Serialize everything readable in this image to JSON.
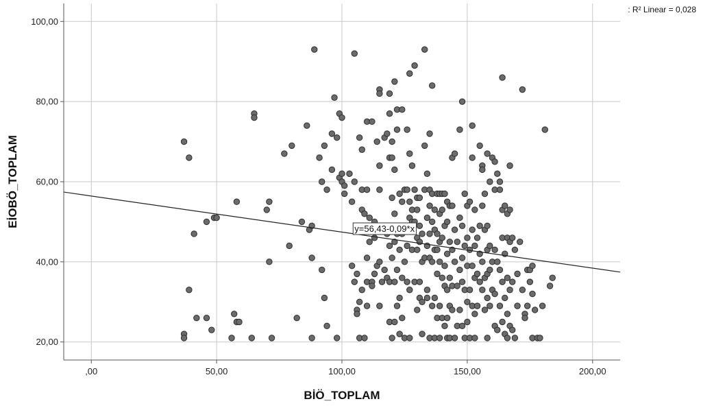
{
  "chart_data": {
    "type": "scatter",
    "xlabel": "BİÖ_TOPLAM",
    "ylabel": "EİOBÖ_TOPLAM",
    "xlim": [
      -11,
      211
    ],
    "ylim": [
      15.5,
      104.5
    ],
    "x_ticks": [
      0,
      50,
      100,
      150,
      200
    ],
    "x_tick_labels": [
      ",00",
      "50,00",
      "100,00",
      "150,00",
      "200,00"
    ],
    "y_ticks": [
      20,
      40,
      60,
      80,
      100
    ],
    "y_tick_labels": [
      "20,00",
      "40,00",
      "60,00",
      "80,00",
      "100,00"
    ],
    "grid": true,
    "fit_line": {
      "label": "y=56,43-0,09*x",
      "intercept": 56.43,
      "slope": -0.09,
      "label_x": 117,
      "label_y": 47.5
    },
    "r2_label": ": R² Linear = 0,028",
    "colors": {
      "point_fill": "#6b6b6b",
      "point_stroke": "#2d2d2d",
      "grid": "#c8c8c8",
      "axis": "#555555",
      "line": "#222222"
    },
    "points": [
      [
        37,
        70
      ],
      [
        39,
        66
      ],
      [
        37,
        22
      ],
      [
        37,
        21
      ],
      [
        39,
        33
      ],
      [
        41,
        47
      ],
      [
        42,
        26
      ],
      [
        46,
        26
      ],
      [
        46,
        50
      ],
      [
        48,
        23
      ],
      [
        49,
        51
      ],
      [
        50,
        51
      ],
      [
        56,
        21
      ],
      [
        57,
        27
      ],
      [
        58,
        25
      ],
      [
        59,
        25
      ],
      [
        58,
        55
      ],
      [
        64,
        21
      ],
      [
        65,
        77
      ],
      [
        65,
        76
      ],
      [
        70,
        53
      ],
      [
        71,
        55
      ],
      [
        71,
        40
      ],
      [
        72,
        21
      ],
      [
        77,
        67
      ],
      [
        79,
        44
      ],
      [
        80,
        69
      ],
      [
        82,
        26
      ],
      [
        84,
        50
      ],
      [
        86,
        74
      ],
      [
        87,
        48
      ],
      [
        88,
        49
      ],
      [
        88,
        41
      ],
      [
        88,
        21
      ],
      [
        89,
        93
      ],
      [
        91,
        66
      ],
      [
        92,
        38
      ],
      [
        92,
        60
      ],
      [
        93,
        69
      ],
      [
        93,
        31
      ],
      [
        94,
        58
      ],
      [
        94,
        24
      ],
      [
        96,
        63
      ],
      [
        96,
        72
      ],
      [
        97,
        81
      ],
      [
        98,
        71
      ],
      [
        98,
        21
      ],
      [
        99,
        61
      ],
      [
        99,
        77
      ],
      [
        100,
        60
      ],
      [
        100,
        76
      ],
      [
        100,
        62
      ],
      [
        101,
        59
      ],
      [
        101,
        57
      ],
      [
        103,
        62
      ],
      [
        104,
        55
      ],
      [
        104,
        39
      ],
      [
        105,
        92
      ],
      [
        105,
        60
      ],
      [
        105,
        35
      ],
      [
        106,
        37
      ],
      [
        106,
        28
      ],
      [
        106,
        27
      ],
      [
        107,
        71
      ],
      [
        107,
        30
      ],
      [
        107,
        21
      ],
      [
        108,
        53
      ],
      [
        108,
        68
      ],
      [
        108,
        58
      ],
      [
        108,
        33
      ],
      [
        109,
        52
      ],
      [
        109,
        21
      ],
      [
        110,
        75
      ],
      [
        110,
        58
      ],
      [
        110,
        41
      ],
      [
        110,
        35
      ],
      [
        110,
        29
      ],
      [
        111,
        51
      ],
      [
        111,
        48
      ],
      [
        111,
        45
      ],
      [
        112,
        75
      ],
      [
        112,
        35
      ],
      [
        112,
        34
      ],
      [
        113,
        50
      ],
      [
        113,
        46
      ],
      [
        113,
        37
      ],
      [
        114,
        70
      ],
      [
        114,
        39
      ],
      [
        115,
        83
      ],
      [
        115,
        82
      ],
      [
        115,
        64
      ],
      [
        115,
        58
      ],
      [
        115,
        40
      ],
      [
        115,
        29
      ],
      [
        116,
        35
      ],
      [
        117,
        71
      ],
      [
        117,
        48
      ],
      [
        117,
        38
      ],
      [
        118,
        72
      ],
      [
        118,
        47
      ],
      [
        118,
        36
      ],
      [
        119,
        82
      ],
      [
        119,
        77
      ],
      [
        119,
        66
      ],
      [
        119,
        44
      ],
      [
        119,
        35
      ],
      [
        119,
        25
      ],
      [
        120,
        70
      ],
      [
        120,
        66
      ],
      [
        120,
        56
      ],
      [
        120,
        41
      ],
      [
        120,
        21
      ],
      [
        121,
        85
      ],
      [
        121,
        63
      ],
      [
        121,
        52
      ],
      [
        121,
        45
      ],
      [
        121,
        35
      ],
      [
        121,
        25
      ],
      [
        122,
        78
      ],
      [
        122,
        73
      ],
      [
        122,
        47
      ],
      [
        122,
        38
      ],
      [
        122,
        29
      ],
      [
        123,
        57
      ],
      [
        123,
        49
      ],
      [
        123,
        43
      ],
      [
        123,
        31
      ],
      [
        123,
        22
      ],
      [
        124,
        78
      ],
      [
        124,
        55
      ],
      [
        124,
        47
      ],
      [
        124,
        36
      ],
      [
        124,
        26
      ],
      [
        125,
        58
      ],
      [
        125,
        40
      ],
      [
        125,
        21
      ],
      [
        126,
        73
      ],
      [
        126,
        58
      ],
      [
        126,
        44
      ],
      [
        126,
        35
      ],
      [
        127,
        87
      ],
      [
        127,
        67
      ],
      [
        127,
        55
      ],
      [
        127,
        51
      ],
      [
        127,
        48
      ],
      [
        127,
        33
      ],
      [
        127,
        21
      ],
      [
        128,
        64
      ],
      [
        128,
        53
      ],
      [
        128,
        50
      ],
      [
        128,
        43
      ],
      [
        129,
        89
      ],
      [
        129,
        58
      ],
      [
        129,
        50
      ],
      [
        129,
        35
      ],
      [
        130,
        56
      ],
      [
        130,
        53
      ],
      [
        130,
        46
      ],
      [
        130,
        43
      ],
      [
        130,
        28
      ],
      [
        131,
        56
      ],
      [
        131,
        49
      ],
      [
        131,
        45
      ],
      [
        131,
        35
      ],
      [
        131,
        31
      ],
      [
        132,
        47
      ],
      [
        132,
        40
      ],
      [
        132,
        30
      ],
      [
        132,
        22
      ],
      [
        133,
        93
      ],
      [
        133,
        69
      ],
      [
        133,
        58
      ],
      [
        133,
        41
      ],
      [
        134,
        62
      ],
      [
        134,
        51
      ],
      [
        134,
        44
      ],
      [
        134,
        33
      ],
      [
        134,
        31
      ],
      [
        135,
        72
      ],
      [
        135,
        58
      ],
      [
        135,
        54
      ],
      [
        135,
        47
      ],
      [
        135,
        41
      ],
      [
        135,
        21
      ],
      [
        136,
        84
      ],
      [
        136,
        57
      ],
      [
        136,
        50
      ],
      [
        136,
        40
      ],
      [
        136,
        29
      ],
      [
        137,
        53
      ],
      [
        137,
        48
      ],
      [
        137,
        43
      ],
      [
        137,
        31
      ],
      [
        137,
        21
      ],
      [
        138,
        57
      ],
      [
        138,
        47
      ],
      [
        138,
        43
      ],
      [
        138,
        37
      ],
      [
        138,
        26
      ],
      [
        139,
        57
      ],
      [
        139,
        52
      ],
      [
        139,
        45
      ],
      [
        139,
        40
      ],
      [
        139,
        29
      ],
      [
        139,
        21
      ],
      [
        140,
        57
      ],
      [
        140,
        53
      ],
      [
        140,
        46
      ],
      [
        140,
        36
      ],
      [
        140,
        26
      ],
      [
        141,
        57
      ],
      [
        141,
        49
      ],
      [
        141,
        39
      ],
      [
        141,
        34
      ],
      [
        141,
        24
      ],
      [
        142,
        55
      ],
      [
        142,
        50
      ],
      [
        142,
        42
      ],
      [
        142,
        33
      ],
      [
        142,
        26
      ],
      [
        142,
        21
      ],
      [
        143,
        54
      ],
      [
        143,
        45
      ],
      [
        143,
        36
      ],
      [
        143,
        29
      ],
      [
        143,
        21
      ],
      [
        144,
        66
      ],
      [
        144,
        54
      ],
      [
        144,
        43
      ],
      [
        144,
        34
      ],
      [
        144,
        28
      ],
      [
        145,
        67
      ],
      [
        145,
        48
      ],
      [
        145,
        40
      ],
      [
        145,
        21
      ],
      [
        146,
        45
      ],
      [
        146,
        34
      ],
      [
        146,
        24
      ],
      [
        147,
        73
      ],
      [
        147,
        51
      ],
      [
        147,
        38
      ],
      [
        147,
        28
      ],
      [
        148,
        80
      ],
      [
        148,
        49
      ],
      [
        148,
        41
      ],
      [
        148,
        35
      ],
      [
        148,
        24
      ],
      [
        149,
        57
      ],
      [
        149,
        44
      ],
      [
        149,
        33
      ],
      [
        149,
        21
      ],
      [
        150,
        54
      ],
      [
        150,
        46
      ],
      [
        150,
        39
      ],
      [
        150,
        30
      ],
      [
        150,
        25
      ],
      [
        151,
        55
      ],
      [
        151,
        43
      ],
      [
        151,
        33
      ],
      [
        151,
        21
      ],
      [
        152,
        74
      ],
      [
        152,
        66
      ],
      [
        152,
        48
      ],
      [
        152,
        39
      ],
      [
        152,
        29
      ],
      [
        153,
        53
      ],
      [
        153,
        44
      ],
      [
        153,
        36
      ],
      [
        153,
        27
      ],
      [
        153,
        21
      ],
      [
        154,
        46
      ],
      [
        154,
        37
      ],
      [
        154,
        29
      ],
      [
        155,
        69
      ],
      [
        155,
        49
      ],
      [
        155,
        42
      ],
      [
        155,
        35
      ],
      [
        156,
        64
      ],
      [
        156,
        63
      ],
      [
        156,
        54
      ],
      [
        156,
        40
      ],
      [
        156,
        33
      ],
      [
        157,
        57
      ],
      [
        157,
        48
      ],
      [
        157,
        36
      ],
      [
        157,
        28
      ],
      [
        158,
        67
      ],
      [
        158,
        49
      ],
      [
        158,
        43
      ],
      [
        158,
        37
      ],
      [
        158,
        31
      ],
      [
        158,
        21
      ],
      [
        159,
        60
      ],
      [
        159,
        44
      ],
      [
        159,
        38
      ],
      [
        159,
        29
      ],
      [
        160,
        66
      ],
      [
        160,
        40
      ],
      [
        160,
        33
      ],
      [
        161,
        65
      ],
      [
        161,
        58
      ],
      [
        161,
        43
      ],
      [
        161,
        32
      ],
      [
        161,
        24
      ],
      [
        162,
        62
      ],
      [
        162,
        40
      ],
      [
        162,
        23
      ],
      [
        163,
        60
      ],
      [
        163,
        58
      ],
      [
        163,
        38
      ],
      [
        163,
        29
      ],
      [
        164,
        86
      ],
      [
        164,
        53
      ],
      [
        164,
        46
      ],
      [
        164,
        35
      ],
      [
        164,
        25
      ],
      [
        165,
        54
      ],
      [
        165,
        42
      ],
      [
        165,
        31
      ],
      [
        165,
        22
      ],
      [
        166,
        52
      ],
      [
        166,
        46
      ],
      [
        166,
        36
      ],
      [
        166,
        27
      ],
      [
        166,
        21
      ],
      [
        167,
        64
      ],
      [
        167,
        53
      ],
      [
        167,
        45
      ],
      [
        167,
        33
      ],
      [
        167,
        24
      ],
      [
        168,
        46
      ],
      [
        168,
        35
      ],
      [
        168,
        23
      ],
      [
        169,
        43
      ],
      [
        169,
        21
      ],
      [
        170,
        37
      ],
      [
        170,
        29
      ],
      [
        171,
        45
      ],
      [
        172,
        83
      ],
      [
        172,
        33
      ],
      [
        173,
        27
      ],
      [
        173,
        26
      ],
      [
        174,
        38
      ],
      [
        174,
        29
      ],
      [
        175,
        38
      ],
      [
        175,
        35
      ],
      [
        176,
        39
      ],
      [
        176,
        32
      ],
      [
        176,
        21
      ],
      [
        177,
        28
      ],
      [
        178,
        21
      ],
      [
        179,
        21
      ],
      [
        180,
        29
      ],
      [
        181,
        73
      ],
      [
        183,
        34
      ],
      [
        184,
        36
      ]
    ]
  }
}
